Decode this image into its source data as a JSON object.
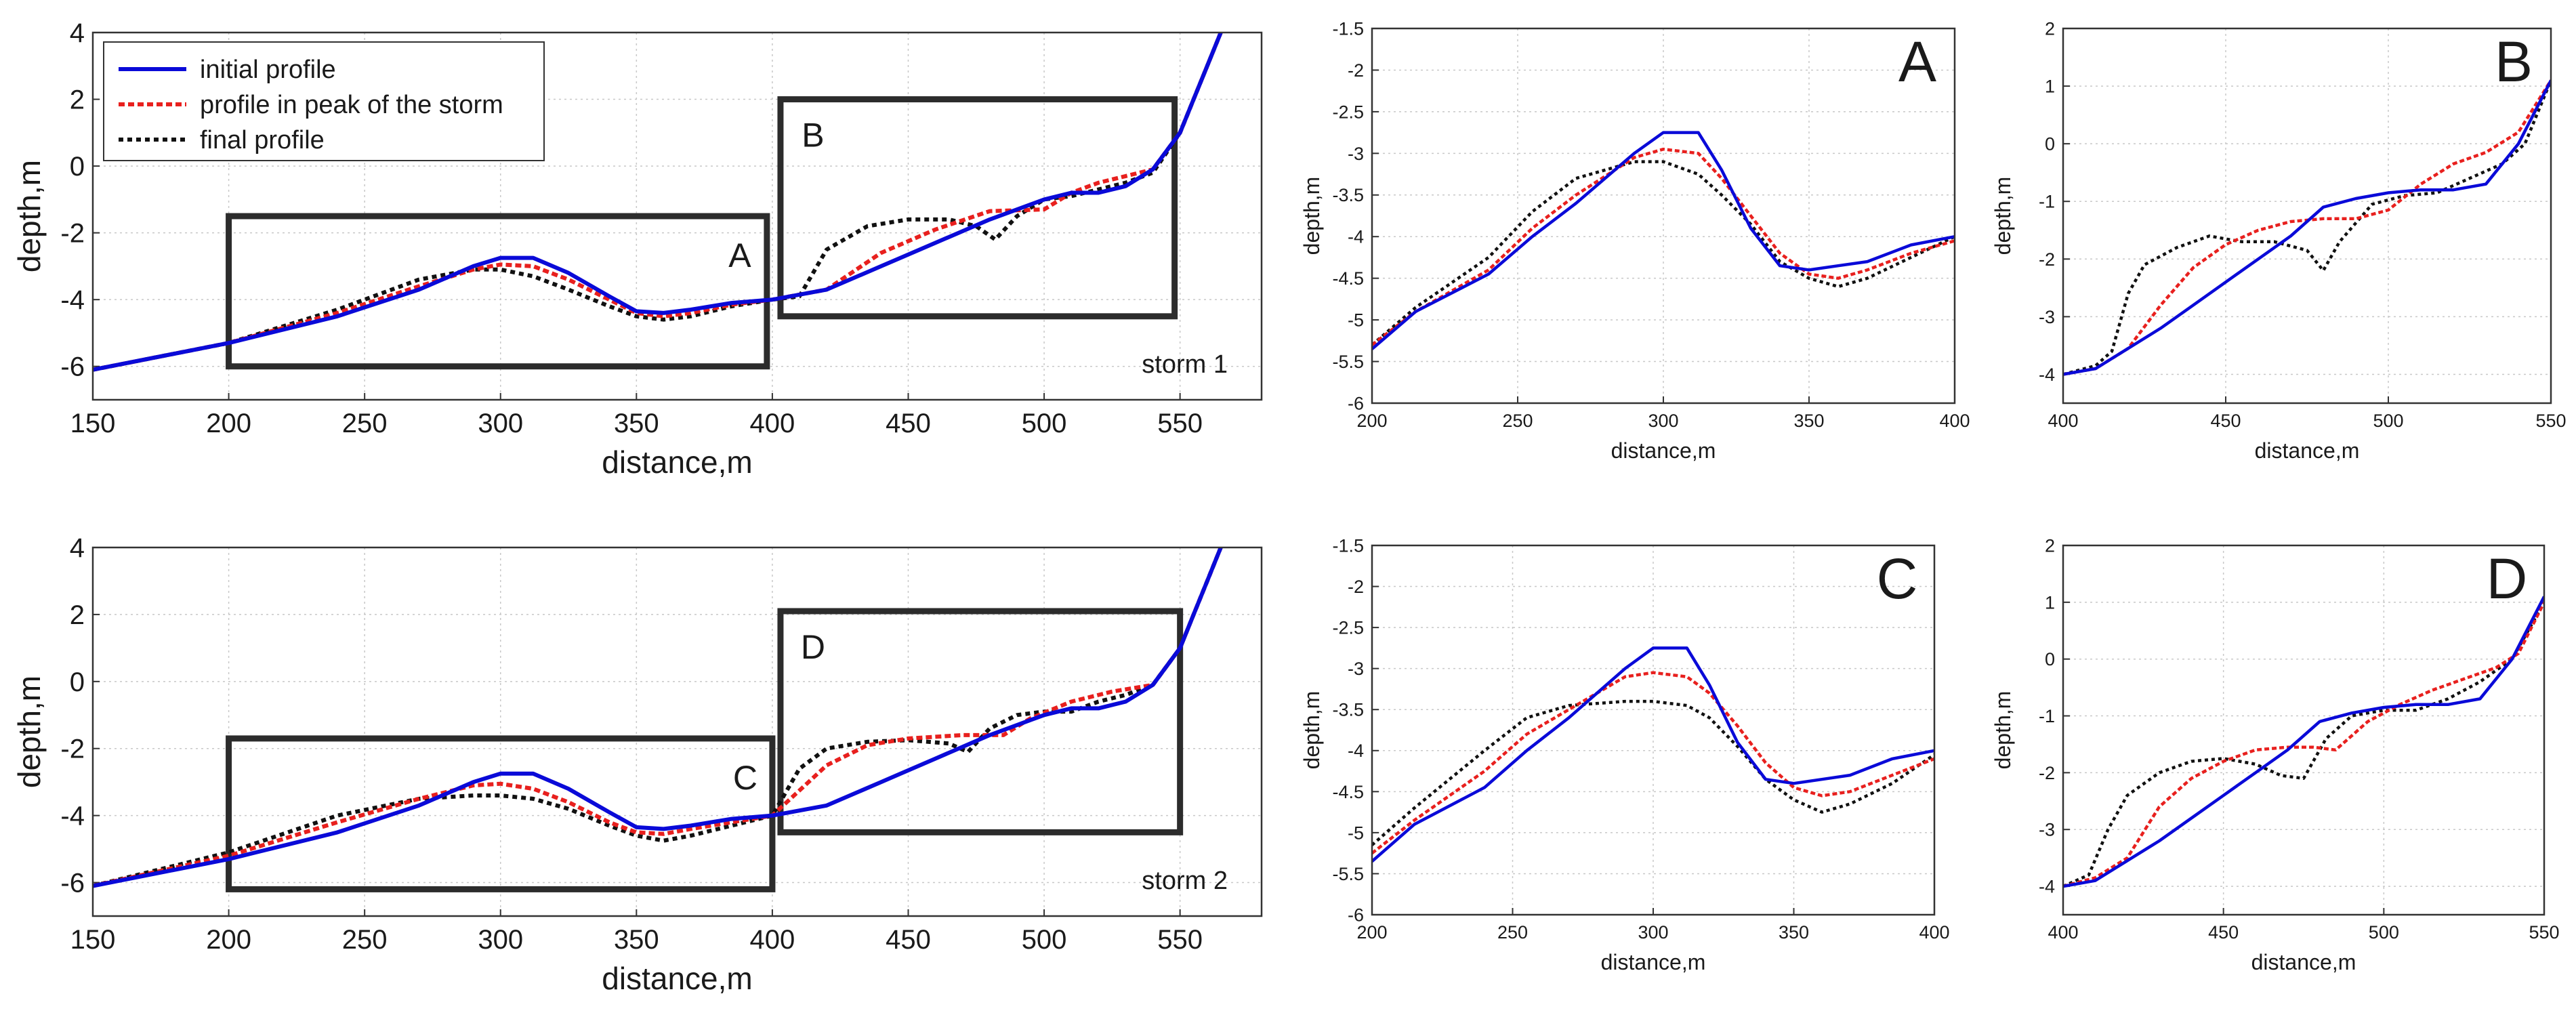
{
  "colors": {
    "initial": "#0a0ad8",
    "peak": "#e8201e",
    "final": "#111111",
    "box": "#2c2c2c",
    "grid": "#c8c8c8"
  },
  "legend": {
    "placement": "top-left",
    "entries": [
      "initial profile",
      "profile in peak of the storm",
      "final profile"
    ]
  },
  "chart_data": [
    {
      "id": "p1",
      "type": "line",
      "xlabel": "distance,m",
      "ylabel": "depth,m",
      "xlim": [
        150,
        580
      ],
      "ylim": [
        -7,
        4
      ],
      "xticks": [
        150,
        200,
        250,
        300,
        350,
        400,
        450,
        500,
        550
      ],
      "yticks": [
        -6,
        -4,
        -2,
        0,
        2,
        4
      ],
      "grid": true,
      "annotation": "storm 1",
      "boxes": [
        {
          "label": "A",
          "x": [
            200,
            398
          ],
          "y": [
            -6,
            -1.5
          ]
        },
        {
          "label": "B",
          "x": [
            403,
            548
          ],
          "y": [
            -4.5,
            2
          ]
        }
      ],
      "series": [
        {
          "name": "initial profile",
          "style": "initial",
          "x": [
            150,
            200,
            240,
            270,
            290,
            300,
            312,
            325,
            340,
            350,
            360,
            370,
            385,
            400,
            420,
            440,
            460,
            480,
            500,
            510,
            520,
            530,
            540,
            550,
            555,
            560,
            565
          ],
          "y": [
            -6.1,
            -5.3,
            -4.5,
            -3.7,
            -3.0,
            -2.75,
            -2.75,
            -3.2,
            -3.9,
            -4.35,
            -4.4,
            -4.3,
            -4.1,
            -4.0,
            -3.7,
            -3.0,
            -2.3,
            -1.6,
            -1.0,
            -0.8,
            -0.8,
            -0.6,
            -0.1,
            1.0,
            2.0,
            3.0,
            4.0
          ]
        },
        {
          "name": "profile in peak of the storm",
          "style": "peak",
          "x": [
            150,
            200,
            240,
            270,
            290,
            300,
            312,
            325,
            340,
            350,
            360,
            370,
            385,
            400,
            420,
            440,
            460,
            480,
            500,
            510,
            520,
            530,
            540,
            550,
            555,
            560,
            565
          ],
          "y": [
            -6.1,
            -5.3,
            -4.4,
            -3.6,
            -3.1,
            -2.95,
            -3.0,
            -3.4,
            -4.0,
            -4.4,
            -4.5,
            -4.4,
            -4.15,
            -4.0,
            -3.7,
            -2.6,
            -1.9,
            -1.35,
            -1.3,
            -0.8,
            -0.5,
            -0.3,
            -0.1,
            1.0,
            2.0,
            3.0,
            4.0
          ]
        },
        {
          "name": "final profile",
          "style": "final",
          "x": [
            150,
            200,
            240,
            270,
            290,
            300,
            312,
            325,
            340,
            350,
            360,
            370,
            385,
            400,
            410,
            420,
            435,
            450,
            465,
            475,
            482,
            490,
            500,
            510,
            520,
            530,
            540,
            550,
            555,
            560,
            565
          ],
          "y": [
            -6.1,
            -5.3,
            -4.3,
            -3.4,
            -3.1,
            -3.1,
            -3.3,
            -3.7,
            -4.2,
            -4.5,
            -4.6,
            -4.5,
            -4.2,
            -4.0,
            -3.9,
            -2.5,
            -1.8,
            -1.6,
            -1.6,
            -1.8,
            -2.2,
            -1.5,
            -1.0,
            -0.9,
            -0.7,
            -0.5,
            -0.2,
            1.0,
            2.0,
            3.0,
            4.0
          ]
        }
      ]
    },
    {
      "id": "p2",
      "type": "line",
      "xlabel": "distance,m",
      "ylabel": "depth,m",
      "xlim": [
        150,
        580
      ],
      "ylim": [
        -7,
        4
      ],
      "xticks": [
        150,
        200,
        250,
        300,
        350,
        400,
        450,
        500,
        550
      ],
      "yticks": [
        -6,
        -4,
        -2,
        0,
        2,
        4
      ],
      "grid": true,
      "annotation": "storm 2",
      "boxes": [
        {
          "label": "C",
          "x": [
            200,
            400
          ],
          "y": [
            -6.2,
            -1.7
          ]
        },
        {
          "label": "D",
          "x": [
            403,
            550
          ],
          "y": [
            -4.5,
            2.1
          ]
        }
      ],
      "series": [
        {
          "name": "initial profile",
          "style": "initial",
          "x": [
            150,
            200,
            240,
            270,
            290,
            300,
            312,
            325,
            340,
            350,
            360,
            370,
            385,
            400,
            420,
            440,
            460,
            480,
            500,
            510,
            520,
            530,
            540,
            550,
            555,
            560,
            565
          ],
          "y": [
            -6.1,
            -5.3,
            -4.5,
            -3.7,
            -3.0,
            -2.75,
            -2.75,
            -3.2,
            -3.9,
            -4.35,
            -4.4,
            -4.3,
            -4.1,
            -4.0,
            -3.7,
            -3.0,
            -2.3,
            -1.6,
            -1.0,
            -0.8,
            -0.8,
            -0.6,
            -0.1,
            1.0,
            2.0,
            3.0,
            4.0
          ]
        },
        {
          "name": "profile in peak of the storm",
          "style": "peak",
          "x": [
            150,
            200,
            240,
            270,
            290,
            300,
            312,
            325,
            340,
            350,
            360,
            370,
            385,
            400,
            420,
            435,
            450,
            470,
            485,
            495,
            510,
            525,
            540,
            550,
            555,
            560,
            565
          ],
          "y": [
            -6.1,
            -5.2,
            -4.2,
            -3.5,
            -3.1,
            -3.05,
            -3.2,
            -3.6,
            -4.2,
            -4.5,
            -4.55,
            -4.4,
            -4.2,
            -4.0,
            -2.5,
            -1.9,
            -1.7,
            -1.6,
            -1.6,
            -1.1,
            -0.6,
            -0.3,
            -0.1,
            1.0,
            2.0,
            3.0,
            4.0
          ]
        },
        {
          "name": "final profile",
          "style": "final",
          "x": [
            150,
            200,
            240,
            270,
            290,
            300,
            312,
            325,
            340,
            350,
            360,
            370,
            385,
            400,
            410,
            420,
            435,
            450,
            465,
            472,
            480,
            490,
            500,
            510,
            520,
            530,
            540,
            550,
            555,
            560,
            565
          ],
          "y": [
            -6.1,
            -5.1,
            -4.0,
            -3.5,
            -3.4,
            -3.4,
            -3.5,
            -3.8,
            -4.3,
            -4.6,
            -4.75,
            -4.6,
            -4.3,
            -4.0,
            -2.6,
            -2.0,
            -1.8,
            -1.75,
            -1.85,
            -2.1,
            -1.4,
            -1.0,
            -0.9,
            -0.9,
            -0.6,
            -0.4,
            -0.1,
            1.0,
            2.0,
            3.0,
            4.0
          ]
        }
      ]
    },
    {
      "id": "pA",
      "type": "line",
      "xlabel": "distance,m",
      "ylabel": "depth,m",
      "xlim": [
        200,
        400
      ],
      "ylim": [
        -6,
        -1.5
      ],
      "xticks": [
        200,
        250,
        300,
        350,
        400
      ],
      "yticks": [
        -6,
        -5.5,
        -5,
        -4.5,
        -4,
        -3.5,
        -3,
        -2.5,
        -2,
        -1.5
      ],
      "grid": true,
      "letter": "A",
      "series": [
        {
          "name": "initial profile",
          "style": "initial",
          "x": [
            200,
            215,
            240,
            255,
            270,
            290,
            300,
            312,
            320,
            330,
            340,
            350,
            360,
            370,
            385,
            400
          ],
          "y": [
            -5.35,
            -4.9,
            -4.45,
            -4.0,
            -3.6,
            -3.0,
            -2.75,
            -2.75,
            -3.2,
            -3.9,
            -4.35,
            -4.4,
            -4.35,
            -4.3,
            -4.1,
            -4.0
          ]
        },
        {
          "name": "profile in peak of the storm",
          "style": "peak",
          "x": [
            200,
            215,
            240,
            255,
            270,
            290,
            300,
            312,
            320,
            330,
            340,
            350,
            360,
            370,
            385,
            400
          ],
          "y": [
            -5.3,
            -4.9,
            -4.4,
            -3.9,
            -3.5,
            -3.05,
            -2.95,
            -3.0,
            -3.3,
            -3.75,
            -4.2,
            -4.45,
            -4.5,
            -4.4,
            -4.2,
            -4.05
          ]
        },
        {
          "name": "final profile",
          "style": "final",
          "x": [
            200,
            215,
            240,
            255,
            270,
            290,
            300,
            312,
            320,
            330,
            340,
            350,
            360,
            370,
            385,
            400
          ],
          "y": [
            -5.3,
            -4.85,
            -4.25,
            -3.7,
            -3.3,
            -3.1,
            -3.1,
            -3.25,
            -3.5,
            -3.85,
            -4.3,
            -4.5,
            -4.6,
            -4.5,
            -4.25,
            -4.0
          ]
        }
      ]
    },
    {
      "id": "pB",
      "type": "line",
      "xlabel": "distance,m",
      "ylabel": "depth,m",
      "xlim": [
        400,
        550
      ],
      "ylim": [
        -4.5,
        2
      ],
      "xticks": [
        400,
        450,
        500,
        550
      ],
      "yticks": [
        -4,
        -3,
        -2,
        -1,
        0,
        1,
        2
      ],
      "grid": true,
      "letter": "B",
      "series": [
        {
          "name": "initial profile",
          "style": "initial",
          "x": [
            400,
            410,
            420,
            430,
            440,
            450,
            460,
            470,
            480,
            490,
            500,
            510,
            520,
            530,
            540,
            550
          ],
          "y": [
            -4.0,
            -3.9,
            -3.55,
            -3.2,
            -2.8,
            -2.4,
            -2.0,
            -1.6,
            -1.1,
            -0.95,
            -0.85,
            -0.8,
            -0.8,
            -0.7,
            0.0,
            1.1
          ]
        },
        {
          "name": "profile in peak of the storm",
          "style": "peak",
          "x": [
            400,
            410,
            420,
            430,
            440,
            450,
            460,
            470,
            480,
            490,
            500,
            510,
            520,
            530,
            540,
            550
          ],
          "y": [
            -4.0,
            -3.9,
            -3.55,
            -2.8,
            -2.15,
            -1.75,
            -1.5,
            -1.35,
            -1.3,
            -1.3,
            -1.15,
            -0.7,
            -0.35,
            -0.15,
            0.2,
            1.1
          ]
        },
        {
          "name": "final profile",
          "style": "final",
          "x": [
            400,
            410,
            415,
            420,
            425,
            435,
            445,
            455,
            465,
            475,
            480,
            485,
            495,
            505,
            515,
            525,
            535,
            542,
            550
          ],
          "y": [
            -4.0,
            -3.85,
            -3.6,
            -2.6,
            -2.1,
            -1.8,
            -1.6,
            -1.7,
            -1.7,
            -1.85,
            -2.2,
            -1.7,
            -1.05,
            -0.9,
            -0.85,
            -0.6,
            -0.35,
            0.0,
            1.1
          ]
        }
      ]
    },
    {
      "id": "pC",
      "type": "line",
      "xlabel": "distance,m",
      "ylabel": "depth,m",
      "xlim": [
        200,
        400
      ],
      "ylim": [
        -6,
        -1.5
      ],
      "xticks": [
        200,
        250,
        300,
        350,
        400
      ],
      "yticks": [
        -6,
        -5.5,
        -5,
        -4.5,
        -4,
        -3.5,
        -3,
        -2.5,
        -2,
        -1.5
      ],
      "grid": true,
      "letter": "C",
      "series": [
        {
          "name": "initial profile",
          "style": "initial",
          "x": [
            200,
            215,
            240,
            255,
            270,
            290,
            300,
            312,
            320,
            330,
            340,
            350,
            360,
            370,
            385,
            400
          ],
          "y": [
            -5.35,
            -4.9,
            -4.45,
            -4.0,
            -3.6,
            -3.0,
            -2.75,
            -2.75,
            -3.2,
            -3.9,
            -4.35,
            -4.4,
            -4.35,
            -4.3,
            -4.1,
            -4.0
          ]
        },
        {
          "name": "profile in peak of the storm",
          "style": "peak",
          "x": [
            200,
            215,
            240,
            255,
            270,
            290,
            300,
            312,
            320,
            330,
            340,
            350,
            360,
            370,
            385,
            400
          ],
          "y": [
            -5.25,
            -4.85,
            -4.25,
            -3.8,
            -3.5,
            -3.1,
            -3.05,
            -3.1,
            -3.3,
            -3.7,
            -4.15,
            -4.45,
            -4.55,
            -4.5,
            -4.3,
            -4.1
          ]
        },
        {
          "name": "final profile",
          "style": "final",
          "x": [
            200,
            215,
            240,
            255,
            270,
            290,
            300,
            312,
            320,
            330,
            340,
            350,
            360,
            370,
            385,
            400
          ],
          "y": [
            -5.15,
            -4.7,
            -4.0,
            -3.6,
            -3.45,
            -3.4,
            -3.4,
            -3.45,
            -3.6,
            -3.95,
            -4.35,
            -4.6,
            -4.75,
            -4.65,
            -4.4,
            -4.05
          ]
        }
      ]
    },
    {
      "id": "pD",
      "type": "line",
      "xlabel": "distance,m",
      "ylabel": "depth,m",
      "xlim": [
        400,
        550
      ],
      "ylim": [
        -4.5,
        2
      ],
      "xticks": [
        400,
        450,
        500,
        550
      ],
      "yticks": [
        -4,
        -3,
        -2,
        -1,
        0,
        1,
        2
      ],
      "grid": true,
      "letter": "D",
      "series": [
        {
          "name": "initial profile",
          "style": "initial",
          "x": [
            400,
            410,
            420,
            430,
            440,
            450,
            460,
            470,
            480,
            490,
            500,
            510,
            520,
            530,
            540,
            550
          ],
          "y": [
            -4.0,
            -3.9,
            -3.55,
            -3.2,
            -2.8,
            -2.4,
            -2.0,
            -1.6,
            -1.1,
            -0.95,
            -0.85,
            -0.8,
            -0.8,
            -0.7,
            0.0,
            1.1
          ]
        },
        {
          "name": "profile in peak of the storm",
          "style": "peak",
          "x": [
            400,
            410,
            420,
            430,
            440,
            450,
            460,
            470,
            478,
            485,
            495,
            505,
            515,
            525,
            535,
            542,
            550
          ],
          "y": [
            -4.0,
            -3.85,
            -3.5,
            -2.6,
            -2.1,
            -1.8,
            -1.6,
            -1.55,
            -1.55,
            -1.6,
            -1.1,
            -0.8,
            -0.55,
            -0.35,
            -0.15,
            0.1,
            1.0
          ]
        },
        {
          "name": "final profile",
          "style": "final",
          "x": [
            400,
            408,
            414,
            420,
            430,
            440,
            450,
            460,
            468,
            475,
            482,
            490,
            500,
            510,
            520,
            530,
            540,
            550
          ],
          "y": [
            -4.0,
            -3.8,
            -3.0,
            -2.4,
            -2.0,
            -1.8,
            -1.75,
            -1.85,
            -2.05,
            -2.1,
            -1.4,
            -1.0,
            -0.9,
            -0.9,
            -0.7,
            -0.4,
            0.0,
            1.0
          ]
        }
      ]
    }
  ]
}
